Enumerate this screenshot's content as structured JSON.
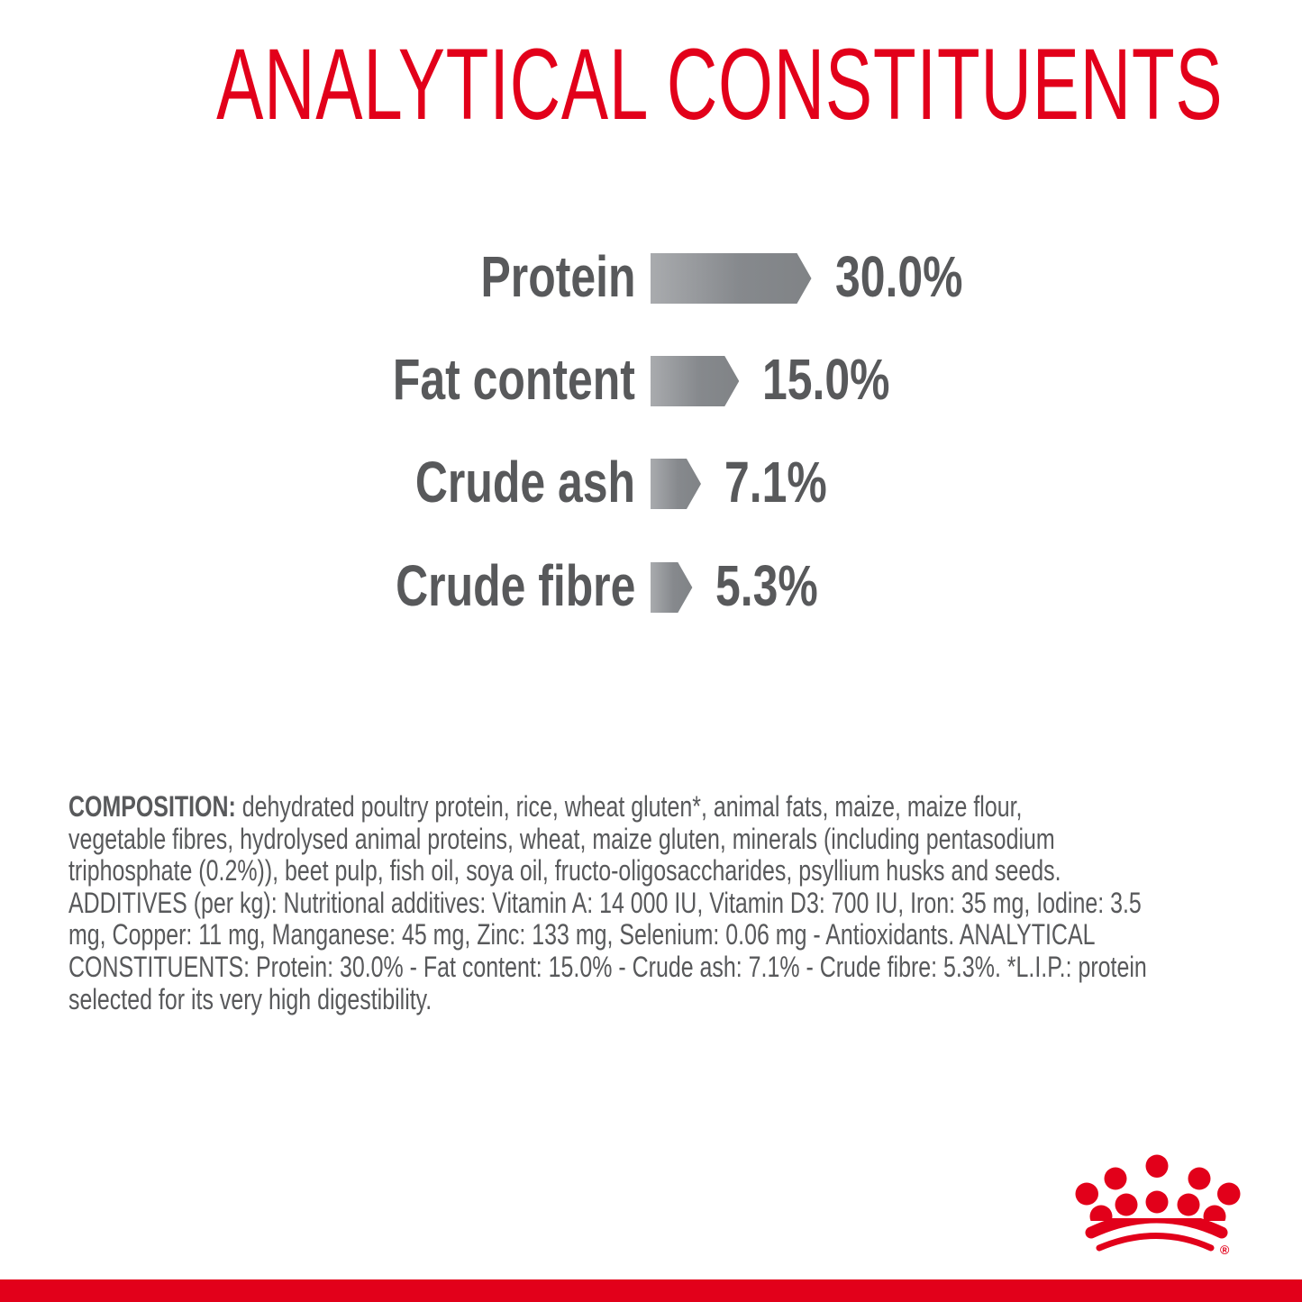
{
  "title": "ANALYTICAL CONSTITUENTS",
  "colors": {
    "brand_red": "#e2001a",
    "text_grey": "#58595b",
    "bar_light": "#a7a9ac",
    "bar_dark": "#808285"
  },
  "chart_data": {
    "type": "bar",
    "orientation": "horizontal",
    "categories": [
      "Protein",
      "Fat content",
      "Crude ash",
      "Crude fibre"
    ],
    "values": [
      30.0,
      15.0,
      7.1,
      5.3
    ],
    "value_labels": [
      "30.0%",
      "15.0%",
      "7.1%",
      "5.3%"
    ],
    "unit": "%",
    "grid": false,
    "axes_visible": false
  },
  "composition": {
    "label": "COMPOSITION:",
    "lines": [
      " dehydrated poultry protein, rice, wheat gluten*, animal fats, maize, maize flour,",
      "vegetable fibres, hydrolysed animal proteins, wheat, maize gluten, minerals (including pentasodium",
      "triphosphate (0.2%)), beet pulp, fish oil, soya oil, fructo-oligosaccharides, psyllium husks and seeds.",
      "ADDITIVES (per kg): Nutritional additives: Vitamin A: 14 000 IU, Vitamin D3: 700 IU, Iron: 35 mg, Iodine: 3.5",
      "mg, Copper: 11 mg, Manganese: 45 mg, Zinc: 133 mg, Selenium: 0.06 mg - Antioxidants. ANALYTICAL",
      "CONSTITUENTS: Protein: 30.0% - Fat content: 15.0% - Crude ash: 7.1% - Crude fibre: 5.3%. *L.I.P.: protein",
      "selected for its very high digestibility."
    ]
  },
  "logo": {
    "name": "royal-canin-crown-logo",
    "registered_mark": "®"
  }
}
